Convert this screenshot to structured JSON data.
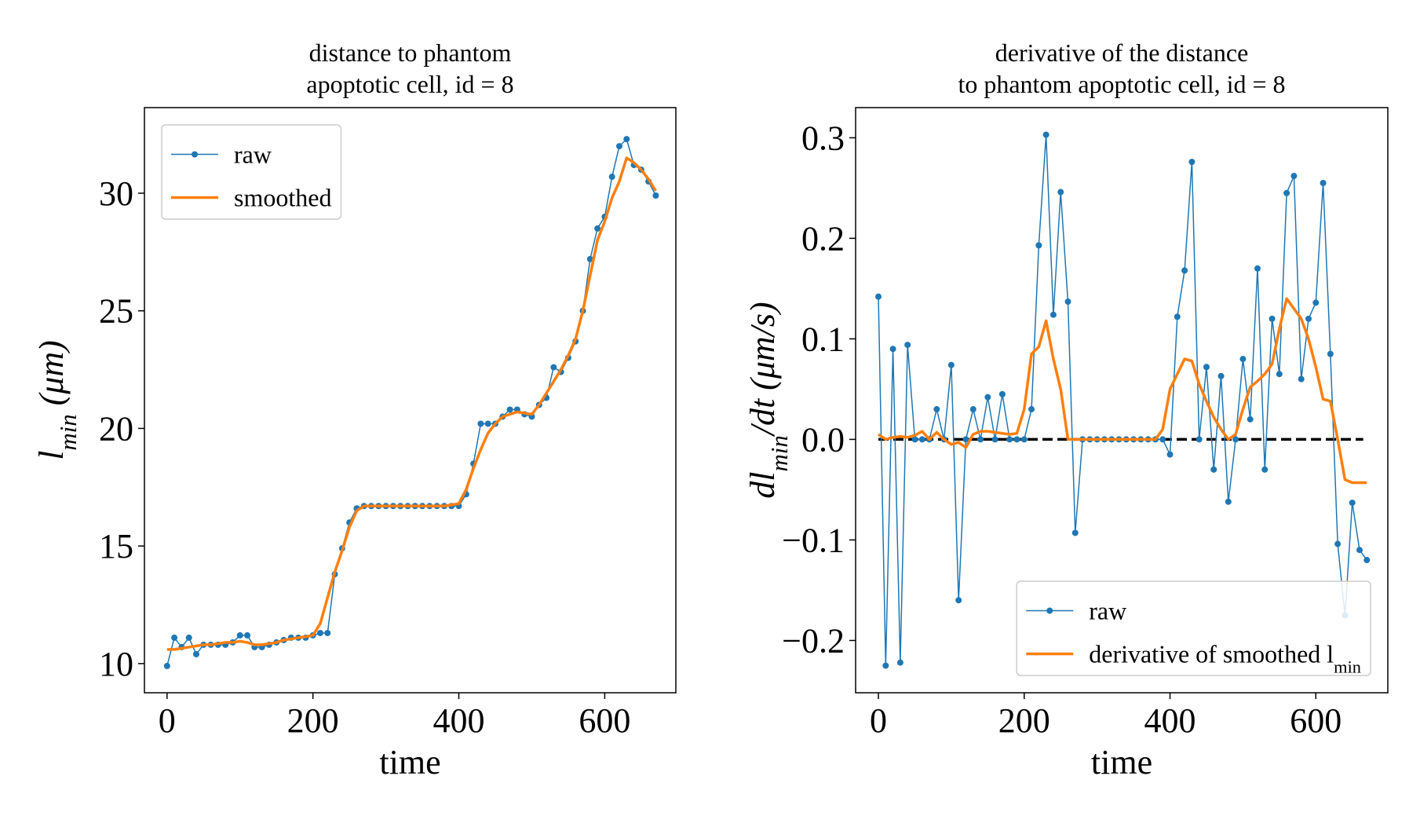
{
  "chart_data": [
    {
      "type": "line",
      "title": [
        "distance to phantom",
        "apoptotic cell, id = 8"
      ],
      "xlabel": "time",
      "ylabel": [
        "l",
        "min",
        " (μm)"
      ],
      "xlim": [
        -31,
        697.5
      ],
      "ylim": [
        8.76,
        33.64
      ],
      "xticks": [
        0,
        200,
        400,
        600
      ],
      "yticks": [
        10,
        15,
        20,
        25,
        30
      ],
      "legend": "upper left",
      "x": [
        0,
        10,
        20,
        30,
        40,
        50,
        60,
        70,
        80,
        90,
        100,
        110,
        120,
        130,
        140,
        150,
        160,
        170,
        180,
        190,
        200,
        210,
        220,
        230,
        240,
        250,
        260,
        270,
        280,
        290,
        300,
        310,
        320,
        330,
        340,
        350,
        360,
        370,
        380,
        390,
        400,
        410,
        420,
        430,
        440,
        450,
        460,
        470,
        480,
        490,
        500,
        510,
        520,
        530,
        540,
        550,
        560,
        570,
        580,
        590,
        600,
        610,
        620,
        630,
        640,
        650,
        660,
        670
      ],
      "series": [
        {
          "name": "raw",
          "color": "#1f77b4",
          "markers": true,
          "values": [
            9.9,
            11.1,
            10.7,
            11.1,
            10.4,
            10.8,
            10.8,
            10.8,
            10.8,
            10.9,
            11.2,
            11.2,
            10.7,
            10.7,
            10.8,
            10.9,
            11.0,
            11.1,
            11.1,
            11.1,
            11.2,
            11.3,
            11.3,
            13.8,
            14.9,
            16.0,
            16.6,
            16.7,
            16.7,
            16.7,
            16.7,
            16.7,
            16.7,
            16.7,
            16.7,
            16.7,
            16.7,
            16.7,
            16.7,
            16.7,
            16.7,
            17.2,
            18.5,
            20.2,
            20.2,
            20.2,
            20.5,
            20.8,
            20.8,
            20.6,
            20.5,
            21.0,
            21.3,
            22.6,
            22.4,
            23.0,
            23.7,
            25.0,
            27.2,
            28.5,
            29.0,
            30.7,
            32.0,
            32.3,
            31.2,
            31.0,
            30.5,
            29.9
          ]
        },
        {
          "name": "smoothed",
          "color": "#ff7f0e",
          "markers": false,
          "values": [
            10.6,
            10.6,
            10.65,
            10.7,
            10.75,
            10.8,
            10.8,
            10.85,
            10.9,
            10.9,
            10.95,
            10.9,
            10.8,
            10.8,
            10.85,
            10.9,
            11.0,
            11.05,
            11.1,
            11.15,
            11.2,
            11.7,
            12.8,
            13.9,
            14.8,
            15.8,
            16.5,
            16.7,
            16.7,
            16.7,
            16.7,
            16.7,
            16.7,
            16.7,
            16.7,
            16.7,
            16.7,
            16.7,
            16.7,
            16.75,
            16.8,
            17.4,
            18.3,
            19.1,
            19.8,
            20.2,
            20.5,
            20.6,
            20.7,
            20.65,
            20.6,
            21.0,
            21.5,
            22.0,
            22.5,
            23.1,
            23.8,
            25.0,
            26.5,
            28.0,
            28.8,
            29.8,
            30.5,
            31.5,
            31.3,
            31.0,
            30.6,
            30.1
          ]
        }
      ]
    },
    {
      "type": "line",
      "title": [
        "derivative of the distance",
        "to phantom apoptotic cell, id = 8"
      ],
      "xlabel": "time",
      "ylabel": [
        "dl",
        "min",
        "/dt (μm/s)"
      ],
      "xlim": [
        -31.25,
        698.75
      ],
      "ylim": [
        -0.252,
        0.33
      ],
      "xticks": [
        0,
        200,
        400,
        600
      ],
      "yticks": [
        {
          "value": -0.2,
          "label": "−0.2"
        },
        {
          "value": -0.1,
          "label": "−0.1"
        },
        {
          "value": 0,
          "label": "0.0"
        },
        {
          "value": 0.1,
          "label": "0.1"
        },
        {
          "value": 0.2,
          "label": "0.2"
        },
        {
          "value": 0.3,
          "label": "0.3"
        }
      ],
      "legend": "lower right",
      "reference_line": {
        "y": 0,
        "x": [
          0,
          665
        ],
        "color": "#000000"
      },
      "x": [
        0,
        10,
        20,
        30,
        40,
        50,
        60,
        70,
        80,
        90,
        100,
        110,
        120,
        130,
        140,
        150,
        160,
        170,
        180,
        190,
        200,
        210,
        220,
        230,
        240,
        250,
        260,
        270,
        280,
        290,
        300,
        310,
        320,
        330,
        340,
        350,
        360,
        370,
        380,
        390,
        400,
        410,
        420,
        430,
        440,
        450,
        460,
        470,
        480,
        490,
        500,
        510,
        520,
        530,
        540,
        550,
        560,
        570,
        580,
        590,
        600,
        610,
        620,
        630,
        640,
        650,
        660,
        670
      ],
      "series": [
        {
          "name": [
            "raw"
          ],
          "color": "#1f77b4",
          "markers": true,
          "values": [
            0.142,
            -0.225,
            0.09,
            -0.222,
            0.094,
            0,
            0,
            0,
            0.03,
            0,
            0.074,
            -0.16,
            0,
            0.03,
            0,
            0.042,
            0,
            0.045,
            0,
            0,
            0,
            0.03,
            0.193,
            0.303,
            0.124,
            0.246,
            0.137,
            -0.093,
            0,
            0,
            0,
            0,
            0,
            0,
            0,
            0,
            0,
            0,
            0,
            0,
            -0.015,
            0.122,
            0.168,
            0.276,
            0,
            0.072,
            -0.03,
            0.063,
            -0.062,
            0,
            0.08,
            0.02,
            0.17,
            -0.03,
            0.12,
            0.065,
            0.245,
            0.262,
            0.06,
            0.12,
            0.136,
            0.255,
            0.085,
            -0.104,
            -0.175,
            -0.063,
            -0.11,
            -0.12
          ]
        },
        {
          "name": [
            "derivative of smoothed l",
            "min"
          ],
          "color": "#ff7f0e",
          "markers": false,
          "values": [
            0.005,
            0,
            0.002,
            0.003,
            0.002,
            0.004,
            0.008,
            0,
            0.007,
            0,
            -0.005,
            -0.003,
            -0.008,
            0.005,
            0.008,
            0.008,
            0.007,
            0.006,
            0.005,
            0.006,
            0.03,
            0.085,
            0.092,
            0.118,
            0.08,
            0.05,
            0,
            0,
            0,
            0,
            0,
            0,
            0,
            0,
            0,
            0,
            0,
            0,
            0,
            0.01,
            0.05,
            0.065,
            0.08,
            0.078,
            0.055,
            0.038,
            0.022,
            0.01,
            0,
            0.005,
            0.03,
            0.052,
            0.058,
            0.065,
            0.075,
            0.11,
            0.14,
            0.13,
            0.12,
            0.1,
            0.072,
            0.04,
            0.038,
            0,
            -0.04,
            -0.043,
            -0.043,
            -0.043
          ]
        }
      ]
    }
  ]
}
